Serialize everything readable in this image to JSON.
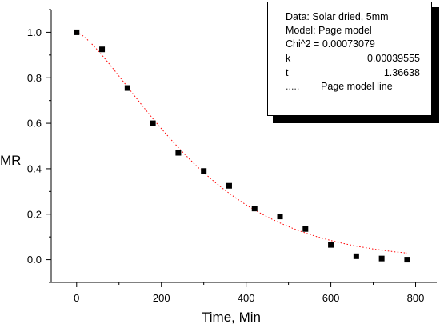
{
  "chart_data": {
    "type": "scatter",
    "title": "",
    "xlabel": "Time, Min",
    "ylabel": "MR",
    "xlim": [
      -60,
      850
    ],
    "ylim": [
      -0.1,
      1.1
    ],
    "xticks": [
      0,
      200,
      400,
      600,
      800
    ],
    "xtick_labels": [
      "0",
      "200",
      "400",
      "600",
      "800"
    ],
    "yticks": [
      0.0,
      0.2,
      0.4,
      0.6,
      0.8,
      1.0
    ],
    "ytick_labels": [
      "0.0",
      "0.2",
      "0.4",
      "0.6",
      "0.8",
      "1.0"
    ],
    "grid": false,
    "series": [
      {
        "type": "scatter",
        "color": "#000000",
        "x": [
          0,
          60,
          120,
          180,
          240,
          300,
          360,
          420,
          480,
          540,
          600,
          660,
          720,
          780
        ],
        "y": [
          1.0,
          0.925,
          0.755,
          0.6,
          0.47,
          0.39,
          0.325,
          0.225,
          0.19,
          0.135,
          0.065,
          0.015,
          0.005,
          0.0
        ]
      },
      {
        "type": "line",
        "style": "dotted",
        "color": "#ff0000",
        "model": {
          "k": 0.00039555,
          "n": 1.36638
        },
        "x_range": [
          0,
          780
        ]
      }
    ],
    "legend_placement": "top-right"
  },
  "legend_box": {
    "line1": "Data: Solar dried, 5mm",
    "line2": "Model: Page model",
    "line3": "Chi^2 = 0.00073079",
    "k_label": "k",
    "k_value": "0.00039555",
    "t_label": "t",
    "t_value": "1.36638",
    "line_marker": ".....",
    "line_label": "Page model line"
  }
}
